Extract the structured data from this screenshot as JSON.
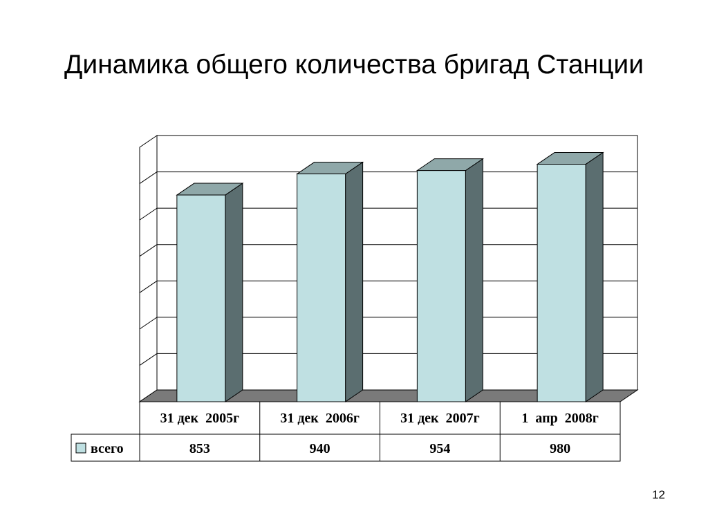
{
  "slide": {
    "title": "Динамика общего количества бригад Станции",
    "page_number": "12"
  },
  "colors": {
    "bar_front": "#bfe0e2",
    "bar_top": "#8fa8a9",
    "bar_side": "#5b6e70",
    "floor": "#7a7a7a",
    "legend_swatch": "#bfe0e2"
  },
  "chart_data": {
    "type": "bar",
    "categories": [
      "31 дек  2005г",
      "31 дек  2006г",
      "31 дек  2007г",
      "1  апр  2008г"
    ],
    "series": [
      {
        "name": "всего",
        "values": [
          853,
          940,
          954,
          980
        ]
      }
    ],
    "title": "",
    "xlabel": "",
    "ylabel": "",
    "ylim": [
      0,
      1050
    ],
    "grid": true,
    "three_d": true,
    "legend": "data-table-left"
  }
}
